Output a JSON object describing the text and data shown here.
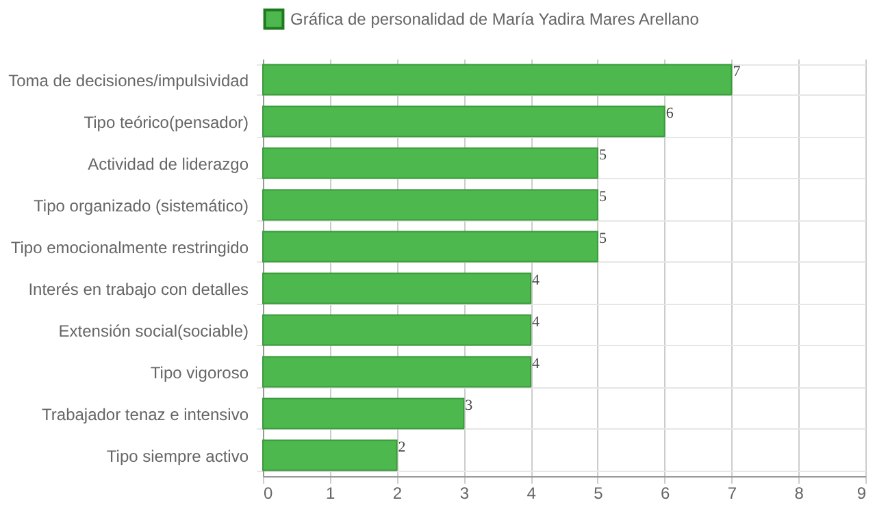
{
  "chart_data": {
    "type": "bar",
    "orientation": "horizontal",
    "categories": [
      "Toma de decisiones/impulsividad",
      "Tipo teórico(pensador)",
      "Actividad de liderazgo",
      "Tipo organizado (sistemático)",
      "Tipo emocionalmente restringido",
      "Interés en trabajo con detalles",
      "Extensión social(sociable)",
      "Tipo vigoroso",
      "Trabajador tenaz e intensivo",
      "Tipo siempre activo"
    ],
    "series": [
      {
        "name": "Gráfica de personalidad de  María Yadira Mares Arellano",
        "color": "#4db84d",
        "values": [
          7,
          6,
          5,
          5,
          5,
          4,
          4,
          4,
          3,
          2
        ]
      }
    ],
    "xlim": [
      0,
      9
    ],
    "xticks": [
      0,
      1,
      2,
      3,
      4,
      5,
      6,
      7,
      8,
      9
    ],
    "grid": true,
    "legend": "top",
    "data_labels": true
  }
}
